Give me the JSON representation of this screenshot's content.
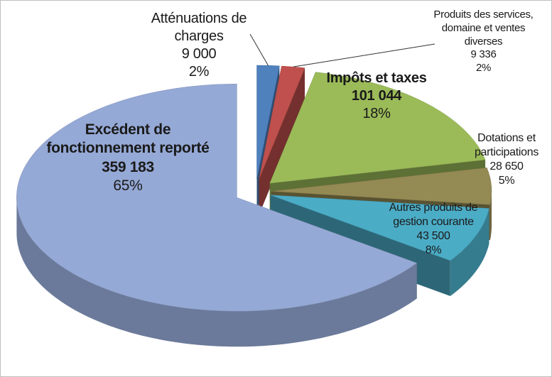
{
  "chart_data": {
    "type": "pie3d",
    "categories": [
      "Atténuations de charges",
      "Produits des services, domaine et ventes diverses",
      "Impôts et taxes",
      "Dotations et participations",
      "Autres produits de gestion courante",
      "Excédent de fonctionnement reporté"
    ],
    "values": [
      9000,
      9336,
      101044,
      28650,
      43500,
      359183
    ],
    "value_labels": [
      "9 000",
      "9 336",
      "101 044",
      "28 650",
      "43 500",
      "359 183"
    ],
    "percent_labels": [
      "2%",
      "2%",
      "18%",
      "5%",
      "8%",
      "65%"
    ],
    "colors": [
      "#4f81bd",
      "#c0504d",
      "#9bbb59",
      "#948a54",
      "#4bacc6",
      "#95a9d6"
    ]
  }
}
